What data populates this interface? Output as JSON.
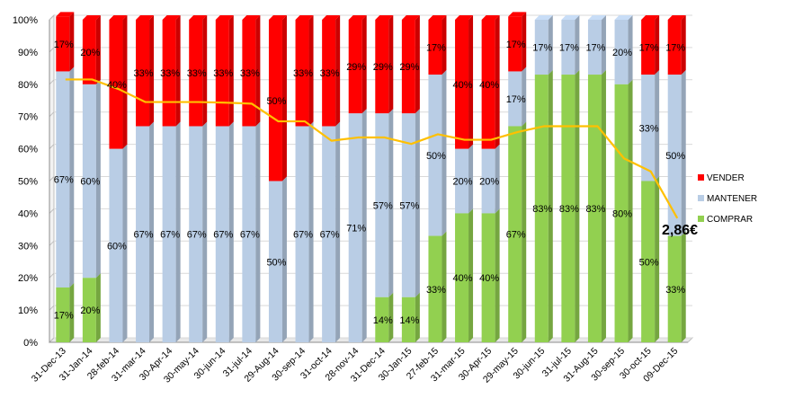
{
  "chart_data": {
    "type": "bar",
    "stacked": true,
    "percent_stacked": true,
    "categories": [
      "31-Dec-13",
      "31-Jan-14",
      "28-feb-14",
      "31-mar-14",
      "30-Apr-14",
      "30-may-14",
      "30-jun-14",
      "31-jul-14",
      "29-Aug-14",
      "30-sep-14",
      "31-oct-14",
      "28-nov-14",
      "31-Dec-14",
      "30-Jan-15",
      "27-feb-15",
      "31-mar-15",
      "30-Apr-15",
      "29-may-15",
      "30-jun-15",
      "31-jul-15",
      "31-Aug-15",
      "30-sep-15",
      "30-oct-15",
      "09-Dec-15"
    ],
    "series": [
      {
        "name": "COMPRAR",
        "color": "#92d050",
        "values": [
          17,
          20,
          0,
          0,
          0,
          0,
          0,
          0,
          0,
          0,
          0,
          0,
          14,
          14,
          33,
          40,
          40,
          67,
          83,
          83,
          83,
          80,
          50,
          33
        ],
        "labels": [
          "17%",
          "20%",
          "",
          "",
          "",
          "",
          "",
          "",
          "",
          "",
          "",
          "",
          "14%",
          "14%",
          "33%",
          "40%",
          "40%",
          "67%",
          "83%",
          "83%",
          "83%",
          "80%",
          "50%",
          "33%"
        ]
      },
      {
        "name": "MANTENER",
        "color": "#b9cde5",
        "values": [
          67,
          60,
          60,
          67,
          67,
          67,
          67,
          67,
          50,
          67,
          67,
          71,
          57,
          57,
          50,
          20,
          20,
          17,
          17,
          17,
          17,
          20,
          33,
          50
        ],
        "labels": [
          "67%",
          "60%",
          "60%",
          "67%",
          "67%",
          "67%",
          "67%",
          "67%",
          "50%",
          "67%",
          "67%",
          "71%",
          "57%",
          "57%",
          "50%",
          "20%",
          "20%",
          "17%",
          "17%",
          "17%",
          "17%",
          "20%",
          "33%",
          "50%"
        ]
      },
      {
        "name": "VENDER",
        "color": "#ff0000",
        "values": [
          17,
          20,
          40,
          33,
          33,
          33,
          33,
          33,
          50,
          33,
          33,
          29,
          29,
          29,
          17,
          40,
          40,
          17,
          0,
          0,
          0,
          0,
          17,
          17
        ],
        "labels": [
          "17%",
          "20%",
          "40%",
          "33%",
          "33%",
          "33%",
          "33%",
          "33%",
          "50%",
          "33%",
          "33%",
          "29%",
          "29%",
          "29%",
          "17%",
          "40%",
          "40%",
          "17%",
          "",
          "",
          "",
          "",
          "17%",
          "17%"
        ]
      }
    ],
    "line": {
      "color": "#ffc000",
      "values": [
        81.5,
        81.5,
        78.5,
        74.5,
        74.5,
        74.5,
        74.3,
        74.0,
        68.5,
        68.5,
        62.5,
        63.5,
        63.5,
        61.5,
        64.5,
        62.8,
        62.8,
        65.2,
        67.0,
        67.0,
        67.0,
        57.0,
        53.0,
        38.5
      ]
    },
    "annotation": "2,86€",
    "ylim": [
      0,
      100
    ],
    "yticks": [
      "0%",
      "10%",
      "20%",
      "30%",
      "40%",
      "50%",
      "60%",
      "70%",
      "80%",
      "90%",
      "100%"
    ],
    "legend_position": "right",
    "legend": [
      {
        "name": "VENDER",
        "color": "#ff0000"
      },
      {
        "name": "MANTENER",
        "color": "#b9cde5"
      },
      {
        "name": "COMPRAR",
        "color": "#92d050"
      }
    ],
    "xlabel": "",
    "ylabel": "",
    "title": ""
  }
}
